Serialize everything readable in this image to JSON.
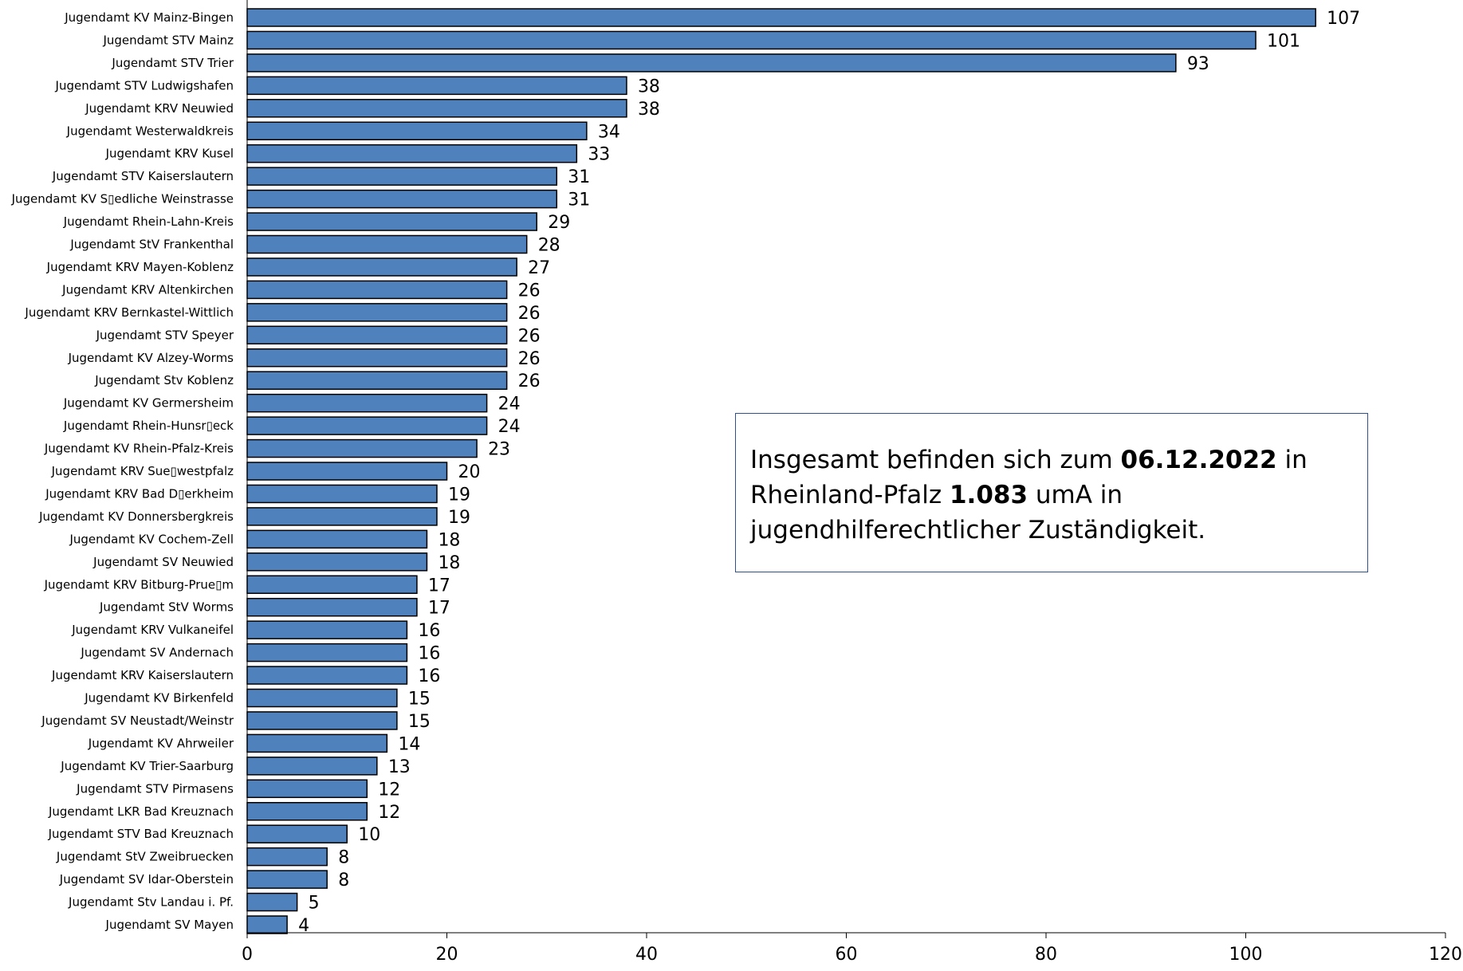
{
  "chart_data": {
    "type": "bar",
    "orientation": "horizontal",
    "title": "",
    "xlabel": "",
    "ylabel": "",
    "xlim": [
      0,
      120
    ],
    "x_ticks": [
      0,
      20,
      40,
      60,
      80,
      100,
      120
    ],
    "grid": false,
    "bar_color": "#4f81bd",
    "categories": [
      "Jugendamt KV Mainz-Bingen",
      "Jugendamt STV Mainz",
      "Jugendamt STV Trier",
      "Jugendamt STV Ludwigshafen",
      "Jugendamt KRV Neuwied",
      "Jugendamt Westerwaldkreis",
      "Jugendamt KRV Kusel",
      "Jugendamt STV Kaiserslautern",
      "Jugendamt KV S▯edliche Weinstrasse",
      "Jugendamt Rhein-Lahn-Kreis",
      "Jugendamt StV Frankenthal",
      "Jugendamt KRV Mayen-Koblenz",
      "Jugendamt KRV Altenkirchen",
      "Jugendamt KRV Bernkastel-Wittlich",
      "Jugendamt STV Speyer",
      "Jugendamt KV Alzey-Worms",
      "Jugendamt Stv Koblenz",
      "Jugendamt KV Germersheim",
      "Jugendamt Rhein-Hunsr▯eck",
      "Jugendamt KV Rhein-Pfalz-Kreis",
      "Jugendamt KRV Sue▯westpfalz",
      "Jugendamt KRV Bad D▯erkheim",
      "Jugendamt KV Donnersbergkreis",
      "Jugendamt KV Cochem-Zell",
      "Jugendamt SV Neuwied",
      "Jugendamt KRV Bitburg-Prue▯m",
      "Jugendamt StV Worms",
      "Jugendamt KRV Vulkaneifel",
      "Jugendamt SV Andernach",
      "Jugendamt KRV Kaiserslautern",
      "Jugendamt KV Birkenfeld",
      "Jugendamt SV Neustadt/Weinstr",
      "Jugendamt KV Ahrweiler",
      "Jugendamt KV Trier-Saarburg",
      "Jugendamt STV Pirmasens",
      "Jugendamt LKR Bad Kreuznach",
      "Jugendamt STV Bad Kreuznach",
      "Jugendamt StV Zweibruecken",
      "Jugendamt SV Idar-Oberstein",
      "Jugendamt Stv Landau i. Pf.",
      "Jugendamt SV Mayen"
    ],
    "values": [
      107,
      101,
      93,
      38,
      38,
      34,
      33,
      31,
      31,
      29,
      28,
      27,
      26,
      26,
      26,
      26,
      26,
      24,
      24,
      23,
      20,
      19,
      19,
      18,
      18,
      17,
      17,
      16,
      16,
      16,
      15,
      15,
      14,
      13,
      12,
      12,
      10,
      8,
      8,
      5,
      4
    ],
    "annotation": {
      "text_before_date": "Insgesamt befinden sich zum ",
      "date": "06.12.2022",
      "text_after_date": " in Rheinland-Pfalz ",
      "total": "1.083",
      "text_end": " umA in jugendhilferechtlicher Zuständigkeit."
    }
  }
}
